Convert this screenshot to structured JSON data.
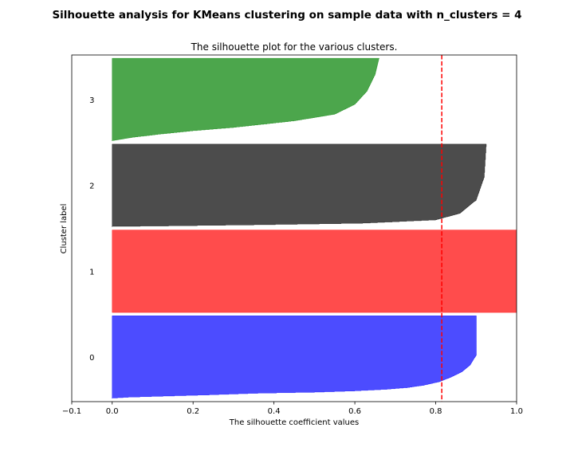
{
  "figure_title": "Silhouette analysis for KMeans clustering on sample data with n_clusters = 4",
  "chart_data": {
    "type": "area",
    "title": "The silhouette plot for the various clusters.",
    "xlabel": "The silhouette coefficient values",
    "ylabel": "Cluster label",
    "xlim": [
      -0.1,
      1.0
    ],
    "xticks": [
      -0.1,
      0.0,
      0.2,
      0.4,
      0.6,
      0.8,
      1.0
    ],
    "xtick_labels": [
      "−0.1",
      "0.0",
      "0.2",
      "0.4",
      "0.6",
      "0.8",
      "1.0"
    ],
    "yticks": [],
    "grid": false,
    "average_silhouette_score": 0.815,
    "average_line_color": "#ff0000",
    "clusters": [
      {
        "label": "0",
        "color": "#0000ff",
        "size": 250,
        "profile": [
          [
            0,
            0.0
          ],
          [
            3,
            0.04
          ],
          [
            10,
            0.24
          ],
          [
            15,
            0.36
          ],
          [
            18,
            0.5
          ],
          [
            22,
            0.6
          ],
          [
            27,
            0.68
          ],
          [
            32,
            0.73
          ],
          [
            39,
            0.77
          ],
          [
            50,
            0.81
          ],
          [
            65,
            0.84
          ],
          [
            80,
            0.865
          ],
          [
            100,
            0.885
          ],
          [
            130,
            0.9
          ],
          [
            250,
            0.9
          ]
        ]
      },
      {
        "label": "1",
        "color": "#ff0000",
        "size": 250,
        "profile": [
          [
            0,
            1.0
          ],
          [
            250,
            1.0
          ]
        ]
      },
      {
        "label": "2",
        "color": "#000000",
        "size": 250,
        "profile": [
          [
            0,
            0.0
          ],
          [
            5,
            0.35
          ],
          [
            10,
            0.62
          ],
          [
            20,
            0.8
          ],
          [
            40,
            0.86
          ],
          [
            80,
            0.9
          ],
          [
            150,
            0.92
          ],
          [
            250,
            0.925
          ]
        ]
      },
      {
        "label": "3",
        "color": "#008000",
        "size": 250,
        "profile": [
          [
            0,
            0.0
          ],
          [
            10,
            0.05
          ],
          [
            20,
            0.12
          ],
          [
            30,
            0.2
          ],
          [
            40,
            0.3
          ],
          [
            60,
            0.45
          ],
          [
            80,
            0.55
          ],
          [
            110,
            0.6
          ],
          [
            150,
            0.63
          ],
          [
            200,
            0.65
          ],
          [
            250,
            0.66
          ]
        ]
      }
    ]
  }
}
